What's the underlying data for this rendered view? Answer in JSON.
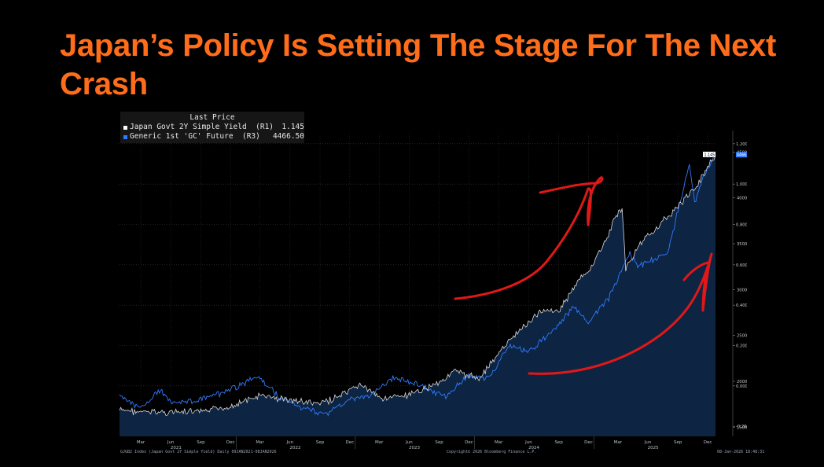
{
  "slide": {
    "title": "Japan’s Policy Is Setting The Stage For The Next Crash"
  },
  "legend": {
    "header": "Last Price",
    "items": [
      {
        "name": "Japan Govt 2Y Simple Yield  (R1)",
        "value": "1.145",
        "color": "#ffffff"
      },
      {
        "name": "Generic 1st 'GC' Future  (R3)",
        "value": "4466.50",
        "color": "#2f7bff"
      }
    ]
  },
  "footer": {
    "left": "GJGB2 Index (Japan Govt 2Y Simple Yield) Daily 09JAN2021-08JAN2026",
    "center": "Copyright© 2026 Bloomberg Finance L.P.",
    "right": "08-Jan-2026 18:48:31"
  },
  "chart_data": {
    "type": "line",
    "x_ticks": {
      "months": [
        "Mar",
        "Jun",
        "Sep",
        "Dec",
        "Mar",
        "Jun",
        "Sep",
        "Dec",
        "Mar",
        "Jun",
        "Sep",
        "Dec",
        "Mar",
        "Jun",
        "Sep",
        "Dec",
        "Mar",
        "Jun",
        "Sep",
        "Dec"
      ],
      "years": [
        "2021",
        "2022",
        "2023",
        "2024",
        "2025"
      ],
      "range": [
        "2021-01-09",
        "2026-01-08"
      ]
    },
    "axes": {
      "r1": {
        "label": "Japan Govt 2Y Simple Yield",
        "ticks": [
          "-0.200",
          "0.000",
          "0.200",
          "0.400",
          "0.600",
          "0.800",
          "1.000",
          "1.200"
        ],
        "range": [
          -0.25,
          1.25
        ]
      },
      "r3": {
        "label": "Generic 1st 'GC' Future",
        "ticks": [
          "1500",
          "2000",
          "2500",
          "3000",
          "3500",
          "4000",
          "4500"
        ],
        "range": [
          1400,
          4700
        ]
      }
    },
    "last_value_tags": [
      {
        "series": "Generic 1st 'GC' Future",
        "text": "4466.50",
        "color": "#2f7bff"
      },
      {
        "series": "Japan Govt 2Y Simple Yield",
        "text": "1.145",
        "color": "#ffffff"
      }
    ],
    "series": [
      {
        "name": "Japan Govt 2Y Simple Yield",
        "axis": "r1",
        "color": "#d9d9d9",
        "points": [
          [
            "2021-01-09",
            -0.12
          ],
          [
            "2021-03-15",
            -0.13
          ],
          [
            "2021-06-15",
            -0.13
          ],
          [
            "2021-09-15",
            -0.13
          ],
          [
            "2021-12-15",
            -0.1
          ],
          [
            "2022-03-15",
            -0.05
          ],
          [
            "2022-06-15",
            -0.07
          ],
          [
            "2022-09-15",
            -0.09
          ],
          [
            "2022-12-15",
            -0.03
          ],
          [
            "2023-01-15",
            0.01
          ],
          [
            "2023-03-15",
            -0.06
          ],
          [
            "2023-06-15",
            -0.05
          ],
          [
            "2023-09-15",
            0.02
          ],
          [
            "2023-10-31",
            0.07
          ],
          [
            "2023-12-15",
            0.05
          ],
          [
            "2024-01-15",
            0.04
          ],
          [
            "2024-03-20",
            0.17
          ],
          [
            "2024-05-15",
            0.27
          ],
          [
            "2024-06-25",
            0.33
          ],
          [
            "2024-07-31",
            0.38
          ],
          [
            "2024-09-15",
            0.37
          ],
          [
            "2024-11-15",
            0.52
          ],
          [
            "2024-12-20",
            0.58
          ],
          [
            "2025-02-10",
            0.73
          ],
          [
            "2025-03-10",
            0.85
          ],
          [
            "2025-03-28",
            0.88
          ],
          [
            "2025-04-08",
            0.58
          ],
          [
            "2025-05-15",
            0.69
          ],
          [
            "2025-07-15",
            0.79
          ],
          [
            "2025-09-15",
            0.89
          ],
          [
            "2025-10-15",
            0.94
          ],
          [
            "2025-11-15",
            1.0
          ],
          [
            "2025-12-15",
            1.09
          ],
          [
            "2026-01-08",
            1.145
          ]
        ]
      },
      {
        "name": "Generic 1st 'GC' Future",
        "axis": "r3",
        "color": "#2f7bff",
        "points": [
          [
            "2021-01-09",
            1850
          ],
          [
            "2021-03-08",
            1700
          ],
          [
            "2021-05-15",
            1900
          ],
          [
            "2021-06-15",
            1780
          ],
          [
            "2021-08-15",
            1780
          ],
          [
            "2021-11-15",
            1860
          ],
          [
            "2022-03-08",
            2050
          ],
          [
            "2022-05-15",
            1820
          ],
          [
            "2022-07-15",
            1720
          ],
          [
            "2022-09-28",
            1640
          ],
          [
            "2022-12-15",
            1800
          ],
          [
            "2023-02-15",
            1840
          ],
          [
            "2023-05-04",
            2050
          ],
          [
            "2023-07-15",
            1960
          ],
          [
            "2023-10-05",
            1830
          ],
          [
            "2023-12-15",
            2070
          ],
          [
            "2024-02-15",
            2030
          ],
          [
            "2024-04-12",
            2380
          ],
          [
            "2024-06-15",
            2330
          ],
          [
            "2024-08-15",
            2500
          ],
          [
            "2024-10-30",
            2800
          ],
          [
            "2024-12-15",
            2650
          ],
          [
            "2025-02-15",
            2900
          ],
          [
            "2025-04-21",
            3400
          ],
          [
            "2025-05-15",
            3250
          ],
          [
            "2025-07-15",
            3350
          ],
          [
            "2025-08-15",
            3400
          ],
          [
            "2025-10-20",
            4380
          ],
          [
            "2025-11-05",
            3950
          ],
          [
            "2025-12-10",
            4300
          ],
          [
            "2026-01-08",
            4466.5
          ]
        ]
      }
    ],
    "annotations": [
      "hand-drawn red arrow over yield line",
      "hand-drawn red arrow over gold future line"
    ]
  }
}
